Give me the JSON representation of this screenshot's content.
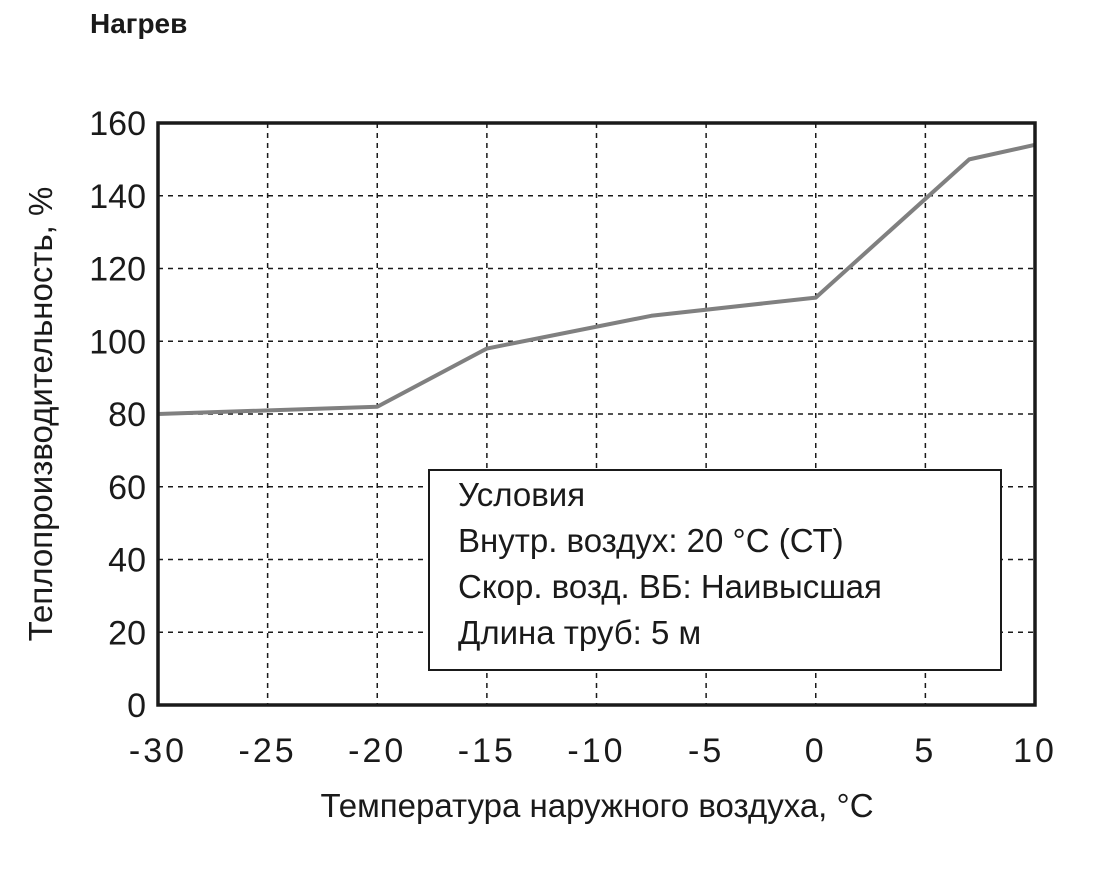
{
  "title": "Нагрев",
  "chart_data": {
    "type": "line",
    "title": "Нагрев",
    "xlabel": "Температура наружного воздуха, °C",
    "ylabel": "Теплопроизводительность, %",
    "xlim": [
      -30,
      10
    ],
    "ylim": [
      0,
      160
    ],
    "x_ticks": [
      "-30",
      "-25",
      "-20",
      "-15",
      "-10",
      "-5",
      "0",
      "5",
      "10"
    ],
    "y_ticks": [
      "0",
      "20",
      "40",
      "60",
      "80",
      "100",
      "120",
      "140",
      "160"
    ],
    "grid": true,
    "series": [
      {
        "name": "Теплопроизводительность",
        "color": "#808080",
        "x": [
          -30,
          -20,
          -15,
          -7.5,
          0,
          7,
          10
        ],
        "values": [
          80,
          82,
          98,
          107,
          112,
          150,
          154
        ]
      }
    ],
    "legend": {
      "position": "lower right (inside plot)",
      "lines": [
        "Условия",
        "Внутр. воздух: 20 °C (СТ)",
        "Скор. возд. ВБ: Наивысшая",
        "Длина труб: 5 м"
      ]
    }
  }
}
